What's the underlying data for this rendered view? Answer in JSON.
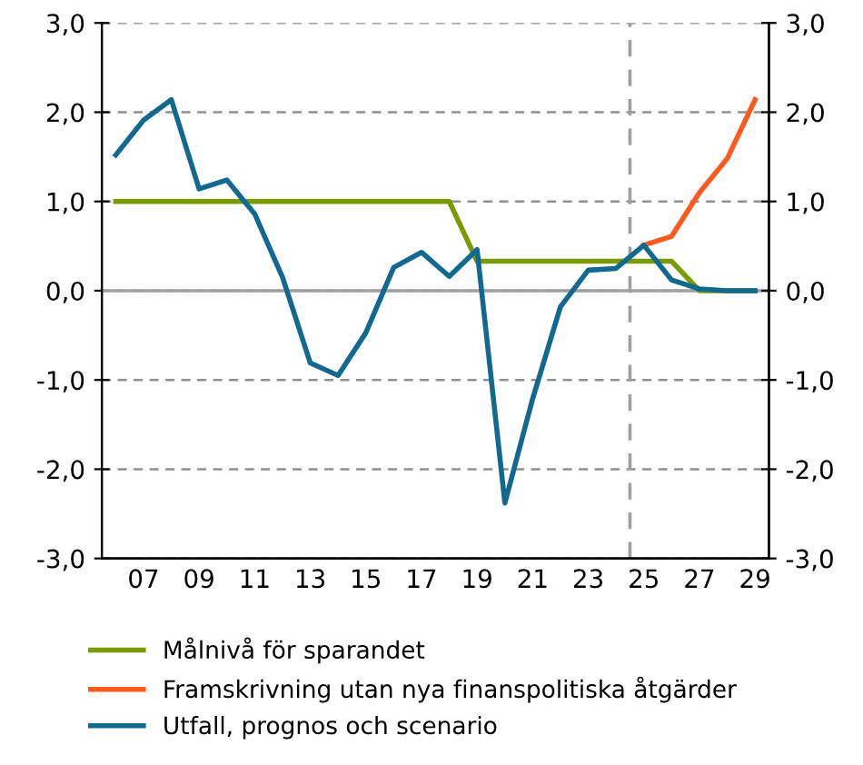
{
  "chart_data": {
    "type": "line",
    "categories": [
      null,
      "07",
      null,
      "09",
      null,
      "11",
      null,
      "13",
      null,
      "15",
      null,
      "17",
      null,
      "19",
      null,
      "21",
      null,
      "23",
      null,
      "25",
      null,
      "27",
      null,
      "29"
    ],
    "series": [
      {
        "name": "Målnivå för sparandet",
        "color": "#7a9a01",
        "values": [
          1.0,
          1.0,
          1.0,
          1.0,
          1.0,
          1.0,
          1.0,
          1.0,
          1.0,
          1.0,
          1.0,
          1.0,
          1.0,
          0.33,
          0.33,
          0.33,
          0.33,
          0.33,
          0.33,
          0.33,
          0.33,
          0.0,
          0.0,
          0.0
        ]
      },
      {
        "name": "Framskrivning utan nya finanspolitiska åtgärder",
        "color": "#ff5a1e",
        "values": [
          null,
          null,
          null,
          null,
          null,
          null,
          null,
          null,
          null,
          null,
          null,
          null,
          null,
          null,
          null,
          null,
          null,
          null,
          null,
          0.51,
          0.61,
          1.1,
          1.48,
          2.14
        ]
      },
      {
        "name": "Utfall, prognos och scenario",
        "color": "#12698f",
        "values": [
          1.52,
          1.91,
          2.14,
          1.14,
          1.24,
          0.86,
          0.15,
          -0.81,
          -0.95,
          -0.47,
          0.26,
          0.43,
          0.16,
          0.46,
          -2.38,
          -1.21,
          -0.18,
          0.23,
          0.25,
          0.51,
          0.12,
          0.02,
          0.0,
          0.0
        ]
      }
    ],
    "ylim": [
      -3,
      3
    ],
    "yticks": [
      {
        "value": -3,
        "label": "-3,0"
      },
      {
        "value": -2,
        "label": "-2,0"
      },
      {
        "value": -1,
        "label": "-1,0"
      },
      {
        "value": 0,
        "label": "0,0"
      },
      {
        "value": 1,
        "label": "1,0"
      },
      {
        "value": 2,
        "label": "2,0"
      },
      {
        "value": 3,
        "label": "3,0"
      }
    ],
    "y2lim": [
      -3,
      3
    ],
    "y2ticks": [
      {
        "value": -3,
        "label": "-3,0"
      },
      {
        "value": -2,
        "label": "-2,0"
      },
      {
        "value": -1,
        "label": "-1,0"
      },
      {
        "value": 0,
        "label": "0,0"
      },
      {
        "value": 1,
        "label": "1,0"
      },
      {
        "value": 2,
        "label": "2,0"
      },
      {
        "value": 3,
        "label": "3,0"
      }
    ],
    "ref_lines": [
      {
        "axis": "y",
        "value": 0,
        "color": "#a0a0a0",
        "line_style": "solid"
      }
    ],
    "grid": "y",
    "legend": "bottom",
    "line_style": "solid",
    "marker": "none"
  }
}
